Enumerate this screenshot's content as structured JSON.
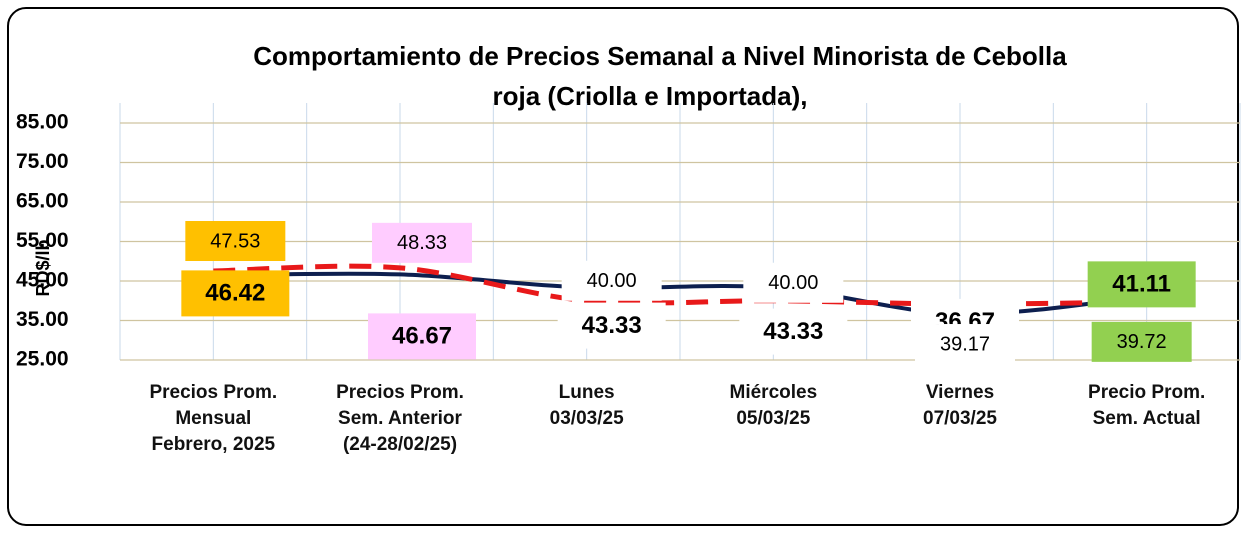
{
  "chart_data": {
    "type": "line",
    "title": "Comportamiento de Precios Semanal a Nivel Minorista de Cebolla roja (Criolla e Importada),",
    "y_label": "RD$/lb",
    "categories": [
      "Precios Prom.\nMensual\nFebrero, 2025",
      "Precios Prom.\nSem. Anterior\n(24-28/02/25)",
      "Lunes\n03/03/25",
      "Miércoles\n05/03/25",
      "Viernes\n07/03/25",
      "Precio Prom.\nSem. Actual"
    ],
    "series": [
      {
        "color": "#0d1f4f",
        "values": [
          46.42,
          46.67,
          43.33,
          43.33,
          36.67,
          41.11
        ]
      },
      {
        "color": "#e8191a",
        "values": [
          47.53,
          48.33,
          40.0,
          40.0,
          39.17,
          39.72
        ],
        "value_labels": [
          "47.53",
          "48.33",
          "40.00",
          "40.00",
          "39.17",
          "39.72"
        ]
      }
    ],
    "ylim": [
      25,
      85
    ],
    "yticks": [
      {
        "value": 25,
        "label": "25.00"
      },
      {
        "value": 35,
        "label": "35.00"
      },
      {
        "value": 45,
        "label": "45.00"
      },
      {
        "value": 55,
        "label": "55.00"
      },
      {
        "value": 65,
        "label": "65.00"
      },
      {
        "value": 75,
        "label": "75.00"
      },
      {
        "value": 85,
        "label": "85.00"
      }
    ],
    "grid": true
  }
}
